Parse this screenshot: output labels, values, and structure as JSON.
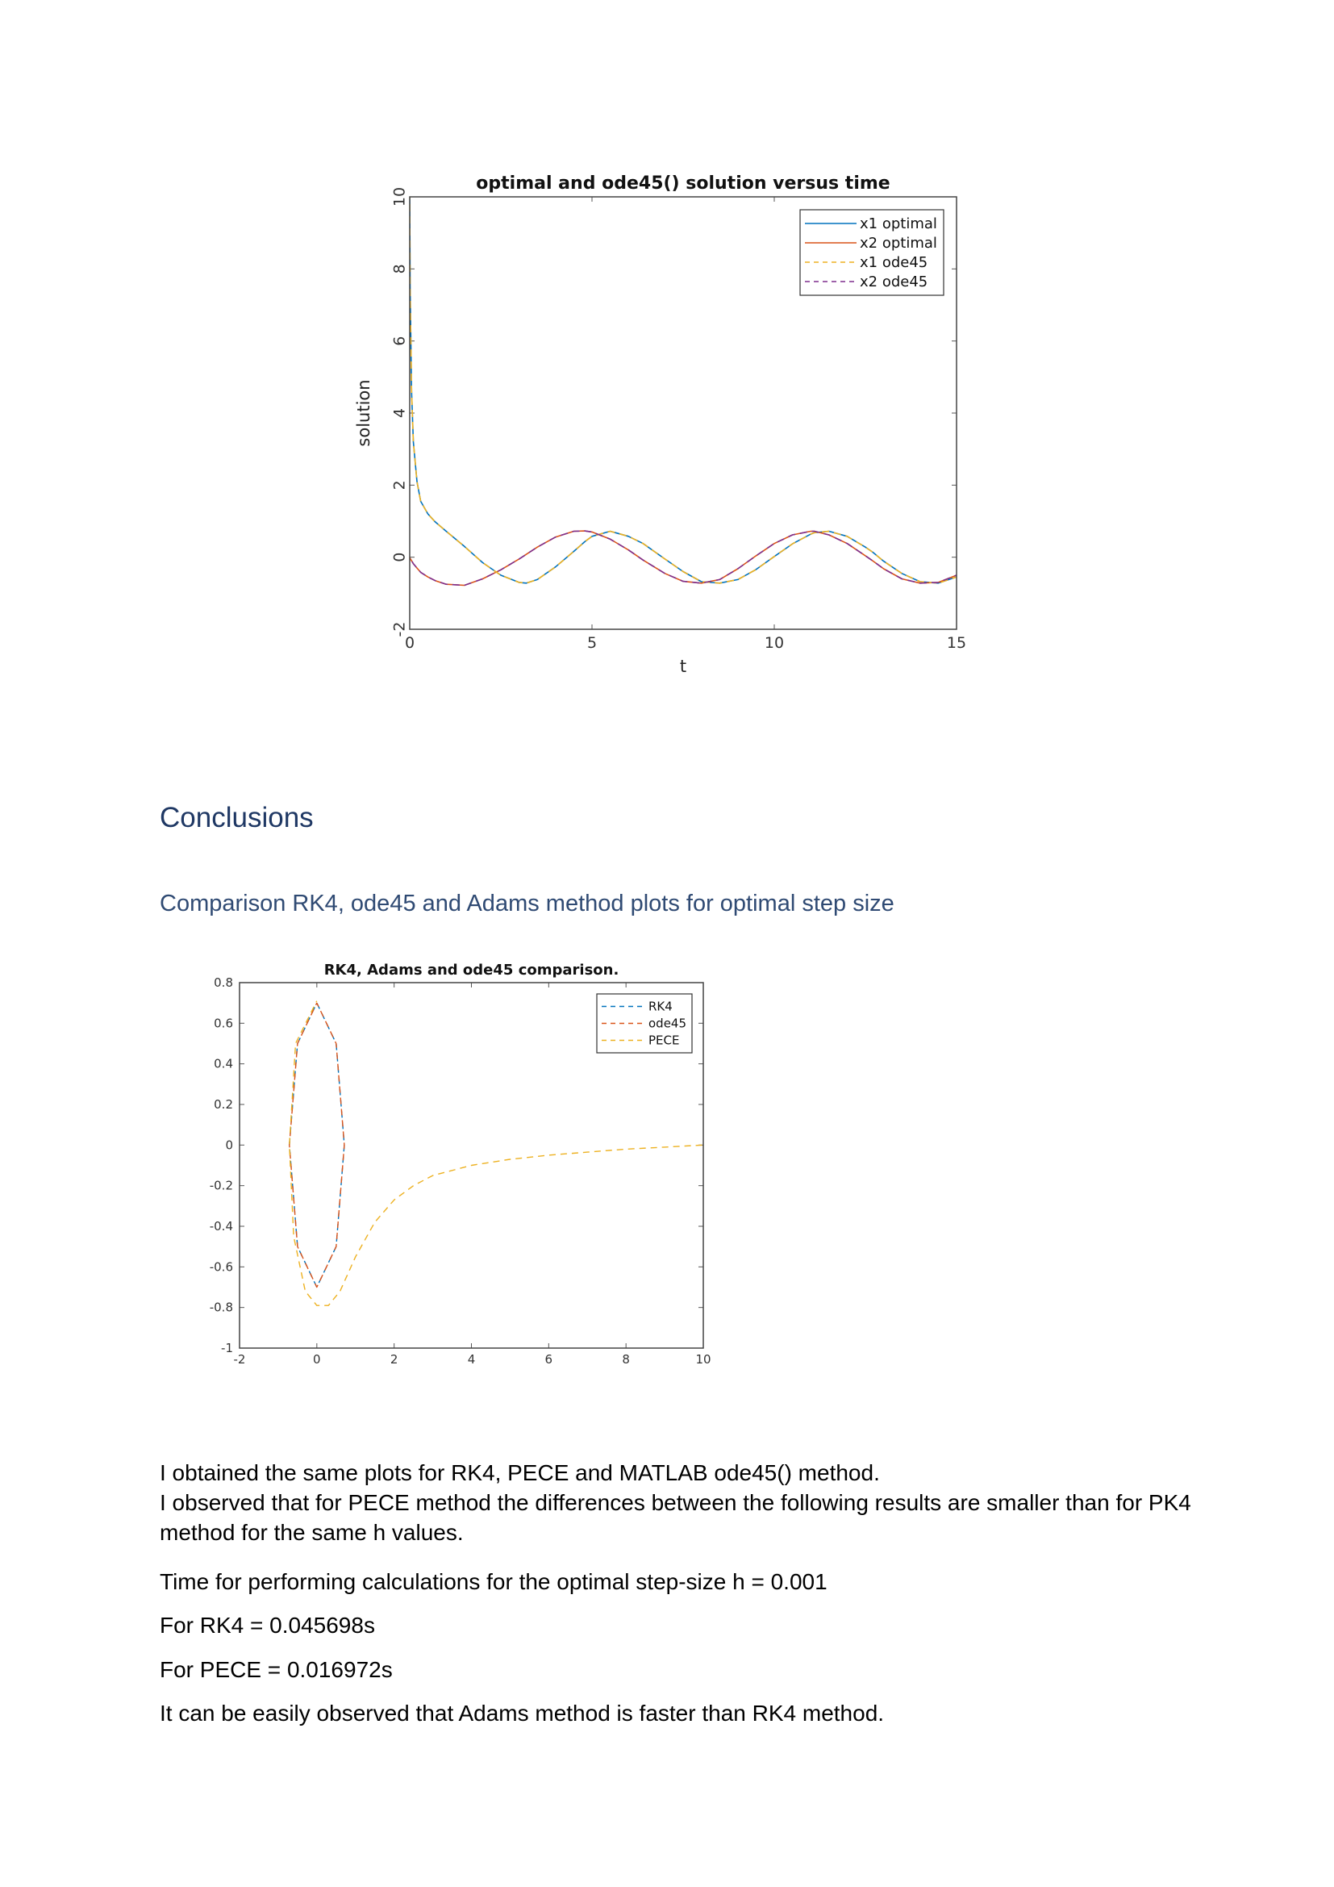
{
  "chart_data": [
    {
      "type": "line",
      "title": "optimal and ode45() solution versus time",
      "xlabel": "t",
      "ylabel": "solution",
      "xlim": [
        0,
        15
      ],
      "ylim": [
        -2,
        10
      ],
      "xticks": [
        0,
        5,
        10,
        15
      ],
      "yticks": [
        -2,
        0,
        2,
        4,
        6,
        8,
        10
      ],
      "grid": false,
      "legend_position": "top-right",
      "legend": [
        "x1 optimal",
        "x2 optimal",
        "x1 ode45",
        "x2 ode45"
      ],
      "x": [
        0,
        0.01,
        0.05,
        0.1,
        0.2,
        0.3,
        0.5,
        0.7,
        1.0,
        1.5,
        2.0,
        2.5,
        3.0,
        3.2,
        3.5,
        4.0,
        4.5,
        4.8,
        5.0,
        5.5,
        6.0,
        6.4,
        7.0,
        7.5,
        8.0,
        8.5,
        9.0,
        9.5,
        10.0,
        10.5,
        11.0,
        11.1,
        11.5,
        12.0,
        12.5,
        12.7,
        13.0,
        13.5,
        14.0,
        14.5,
        15.0
      ],
      "series": [
        {
          "name": "x1 optimal",
          "color": "#0072bd",
          "dash": "solid",
          "values": [
            10,
            7.5,
            4.6,
            3.2,
            2.1,
            1.55,
            1.2,
            0.98,
            0.72,
            0.3,
            -0.15,
            -0.5,
            -0.7,
            -0.72,
            -0.62,
            -0.27,
            0.16,
            0.43,
            0.58,
            0.72,
            0.58,
            0.38,
            -0.05,
            -0.4,
            -0.68,
            -0.72,
            -0.62,
            -0.34,
            0.02,
            0.37,
            0.64,
            0.68,
            0.72,
            0.58,
            0.28,
            0.14,
            -0.11,
            -0.45,
            -0.68,
            -0.72,
            -0.55
          ]
        },
        {
          "name": "x2 optimal",
          "color": "#d95319",
          "dash": "solid",
          "values": [
            0,
            -0.03,
            -0.1,
            -0.18,
            -0.3,
            -0.42,
            -0.55,
            -0.65,
            -0.75,
            -0.78,
            -0.6,
            -0.35,
            -0.05,
            0.08,
            0.28,
            0.56,
            0.72,
            0.73,
            0.7,
            0.5,
            0.2,
            -0.08,
            -0.45,
            -0.67,
            -0.72,
            -0.62,
            -0.32,
            0.04,
            0.38,
            0.62,
            0.72,
            0.72,
            0.62,
            0.38,
            0.04,
            -0.1,
            -0.32,
            -0.6,
            -0.72,
            -0.7,
            -0.5
          ]
        },
        {
          "name": "x1 ode45",
          "color": "#edb120",
          "dash": "dashed",
          "values": [
            10,
            7.5,
            4.6,
            3.2,
            2.1,
            1.55,
            1.2,
            0.98,
            0.72,
            0.3,
            -0.15,
            -0.5,
            -0.7,
            -0.72,
            -0.62,
            -0.27,
            0.16,
            0.43,
            0.58,
            0.72,
            0.58,
            0.38,
            -0.05,
            -0.4,
            -0.68,
            -0.72,
            -0.62,
            -0.34,
            0.02,
            0.37,
            0.64,
            0.68,
            0.72,
            0.58,
            0.28,
            0.14,
            -0.11,
            -0.45,
            -0.68,
            -0.72,
            -0.55
          ]
        },
        {
          "name": "x2 ode45",
          "color": "#7e2f8e",
          "dash": "dashed",
          "values": [
            0,
            -0.03,
            -0.1,
            -0.18,
            -0.3,
            -0.42,
            -0.55,
            -0.65,
            -0.75,
            -0.78,
            -0.6,
            -0.35,
            -0.05,
            0.08,
            0.28,
            0.56,
            0.72,
            0.73,
            0.7,
            0.5,
            0.2,
            -0.08,
            -0.45,
            -0.67,
            -0.72,
            -0.62,
            -0.32,
            0.04,
            0.38,
            0.62,
            0.72,
            0.72,
            0.62,
            0.38,
            0.04,
            -0.1,
            -0.32,
            -0.6,
            -0.72,
            -0.7,
            -0.5
          ]
        }
      ]
    },
    {
      "type": "line",
      "title": "RK4, Adams and ode45 comparison.",
      "xlabel": "",
      "ylabel": "",
      "xlim": [
        -2,
        10
      ],
      "ylim": [
        -1,
        0.8
      ],
      "xticks": [
        -2,
        0,
        2,
        4,
        6,
        8,
        10
      ],
      "yticks": [
        0.8,
        0.6,
        0.4,
        0.2,
        0,
        -0.2,
        -0.4,
        -0.6,
        -0.8,
        -1
      ],
      "grid": false,
      "legend_position": "top-right",
      "legend": [
        "RK4",
        "ode45",
        "PECE"
      ],
      "series": [
        {
          "name": "RK4",
          "color": "#0072bd",
          "dash": "dashed",
          "x": [
            0,
            0.5,
            0.71,
            0.5,
            0,
            -0.5,
            -0.71,
            -0.5,
            0
          ],
          "y": [
            0.7,
            0.5,
            0,
            -0.5,
            -0.7,
            -0.5,
            0,
            0.5,
            0.7
          ]
        },
        {
          "name": "ode45",
          "color": "#d95319",
          "dash": "dashed",
          "x": [
            0,
            0.5,
            0.71,
            0.5,
            0,
            -0.5,
            -0.71,
            -0.5,
            0
          ],
          "y": [
            0.7,
            0.5,
            0,
            -0.5,
            -0.7,
            -0.5,
            0,
            0.5,
            0.7
          ]
        },
        {
          "name": "PECE",
          "color": "#edb120",
          "dash": "dashed",
          "x": [
            0,
            -0.55,
            -0.71,
            -0.6,
            -0.3,
            0,
            0.3,
            0.6,
            1.0,
            1.5,
            2.0,
            2.5,
            3.0,
            4.0,
            5.0,
            6.0,
            7.0,
            8.0,
            9.0,
            10.0
          ],
          "y": [
            0.71,
            0.5,
            0,
            -0.45,
            -0.72,
            -0.79,
            -0.79,
            -0.72,
            -0.55,
            -0.38,
            -0.27,
            -0.2,
            -0.15,
            -0.1,
            -0.07,
            -0.05,
            -0.035,
            -0.02,
            -0.01,
            0.0
          ]
        }
      ]
    }
  ],
  "headings": {
    "conclusions": "Conclusions",
    "comparison": "Comparison RK4, ode45 and Adams method plots for optimal step size"
  },
  "paragraphs": {
    "p1_line1": "I obtained the same plots for RK4, PECE and MATLAB ode45() method.",
    "p1_line2": "I observed that for PECE method the differences between the following results are smaller than for PK4 method for the same h values.",
    "p2": "Time for performing calculations for the optimal step-size h = 0.001",
    "p3": "For RK4 = 0.045698s",
    "p4": "For PECE = 0.016972s",
    "p5": "It can be easily observed that Adams method is faster than RK4 method."
  }
}
